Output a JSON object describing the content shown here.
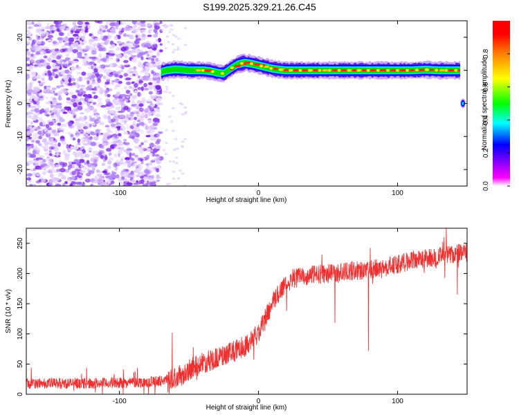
{
  "figure_title": "S199.2025.329.21.26.C45",
  "chart_data": [
    {
      "type": "heatmap",
      "name": "spectrogram",
      "xlabel": "Height of straight line (km)",
      "ylabel": "Frequency (Hz)",
      "xlim": [
        -167,
        150
      ],
      "ylim": [
        -25,
        25
      ],
      "xticks": [
        -100,
        0,
        100
      ],
      "xticklabels": [
        "-100",
        "0",
        "100"
      ],
      "yticks": [
        -20,
        -10,
        0,
        10,
        20
      ],
      "yticklabels": [
        "-20",
        "-10",
        "0",
        "10",
        "20"
      ],
      "noise_region_x": [
        -167,
        -70
      ],
      "sparse_noise_x": [
        -70,
        -52
      ],
      "ridge": {
        "x": [
          -70,
          -66,
          -60,
          -55,
          -50,
          -45,
          -40,
          -35,
          -30,
          -25,
          -20,
          -15,
          -10,
          -5,
          0,
          5,
          10,
          15,
          20,
          30,
          40,
          50,
          60,
          70,
          80,
          90,
          100,
          110,
          120,
          130,
          145
        ],
        "freq": [
          9.5,
          10.0,
          10.3,
          10.2,
          10.0,
          10.0,
          10.0,
          9.8,
          9.3,
          9.0,
          10.5,
          11.8,
          12.3,
          12.0,
          11.5,
          11.0,
          10.5,
          10.2,
          10.0,
          10.0,
          10.0,
          10.0,
          10.0,
          10.0,
          10.0,
          10.0,
          10.0,
          10.0,
          10.2,
          10.0,
          10.0
        ]
      },
      "secondary_blob": {
        "x": 147,
        "freq": 0
      }
    },
    {
      "type": "colorbar",
      "name": "amplitude-colorbar",
      "label": "Normalized spectral amplitude",
      "range": [
        0,
        1
      ],
      "ticks": [
        0.0,
        0.2,
        0.4,
        0.6,
        0.8
      ],
      "ticklabels": [
        "0.0",
        "0.2",
        "0.4",
        "0.6",
        "0.8"
      ],
      "colors": [
        "#ffffff",
        "#ff00ff",
        "#7f00ff",
        "#0000ff",
        "#00ffff",
        "#00ff00",
        "#ffff00",
        "#ff7f00",
        "#ff0000"
      ]
    },
    {
      "type": "line",
      "name": "snr-trace",
      "xlabel": "Height of straight line (km)",
      "ylabel": "SNR (10 * v/v)",
      "xlim": [
        -167,
        150
      ],
      "ylim": [
        0,
        275
      ],
      "xticks": [
        -100,
        0,
        100
      ],
      "xticklabels": [
        "-100",
        "0",
        "100"
      ],
      "yticks": [
        0,
        50,
        100,
        150,
        200,
        250
      ],
      "yticklabels": [
        "0",
        "50",
        "100",
        "150",
        "200",
        "250"
      ],
      "color": "#f03030",
      "trend": {
        "x": [
          -167,
          -120,
          -80,
          -70,
          -62,
          -55,
          -50,
          -40,
          -30,
          -20,
          -10,
          0,
          5,
          10,
          15,
          20,
          25,
          30,
          40,
          50,
          60,
          70,
          80,
          90,
          100,
          110,
          120,
          130,
          140,
          150
        ],
        "y": [
          18,
          18,
          20,
          22,
          26,
          32,
          40,
          52,
          60,
          68,
          80,
          100,
          125,
          150,
          170,
          185,
          192,
          195,
          198,
          200,
          202,
          205,
          206,
          210,
          215,
          222,
          225,
          228,
          232,
          235
        ]
      },
      "spikes": [
        {
          "x": -62,
          "y": 102
        },
        {
          "x": -47,
          "y": 78
        },
        {
          "x": 79,
          "y": 72
        },
        {
          "x": 55,
          "y": 118
        },
        {
          "x": 143,
          "y": 165
        },
        {
          "x": 135,
          "y": 275
        }
      ]
    }
  ]
}
